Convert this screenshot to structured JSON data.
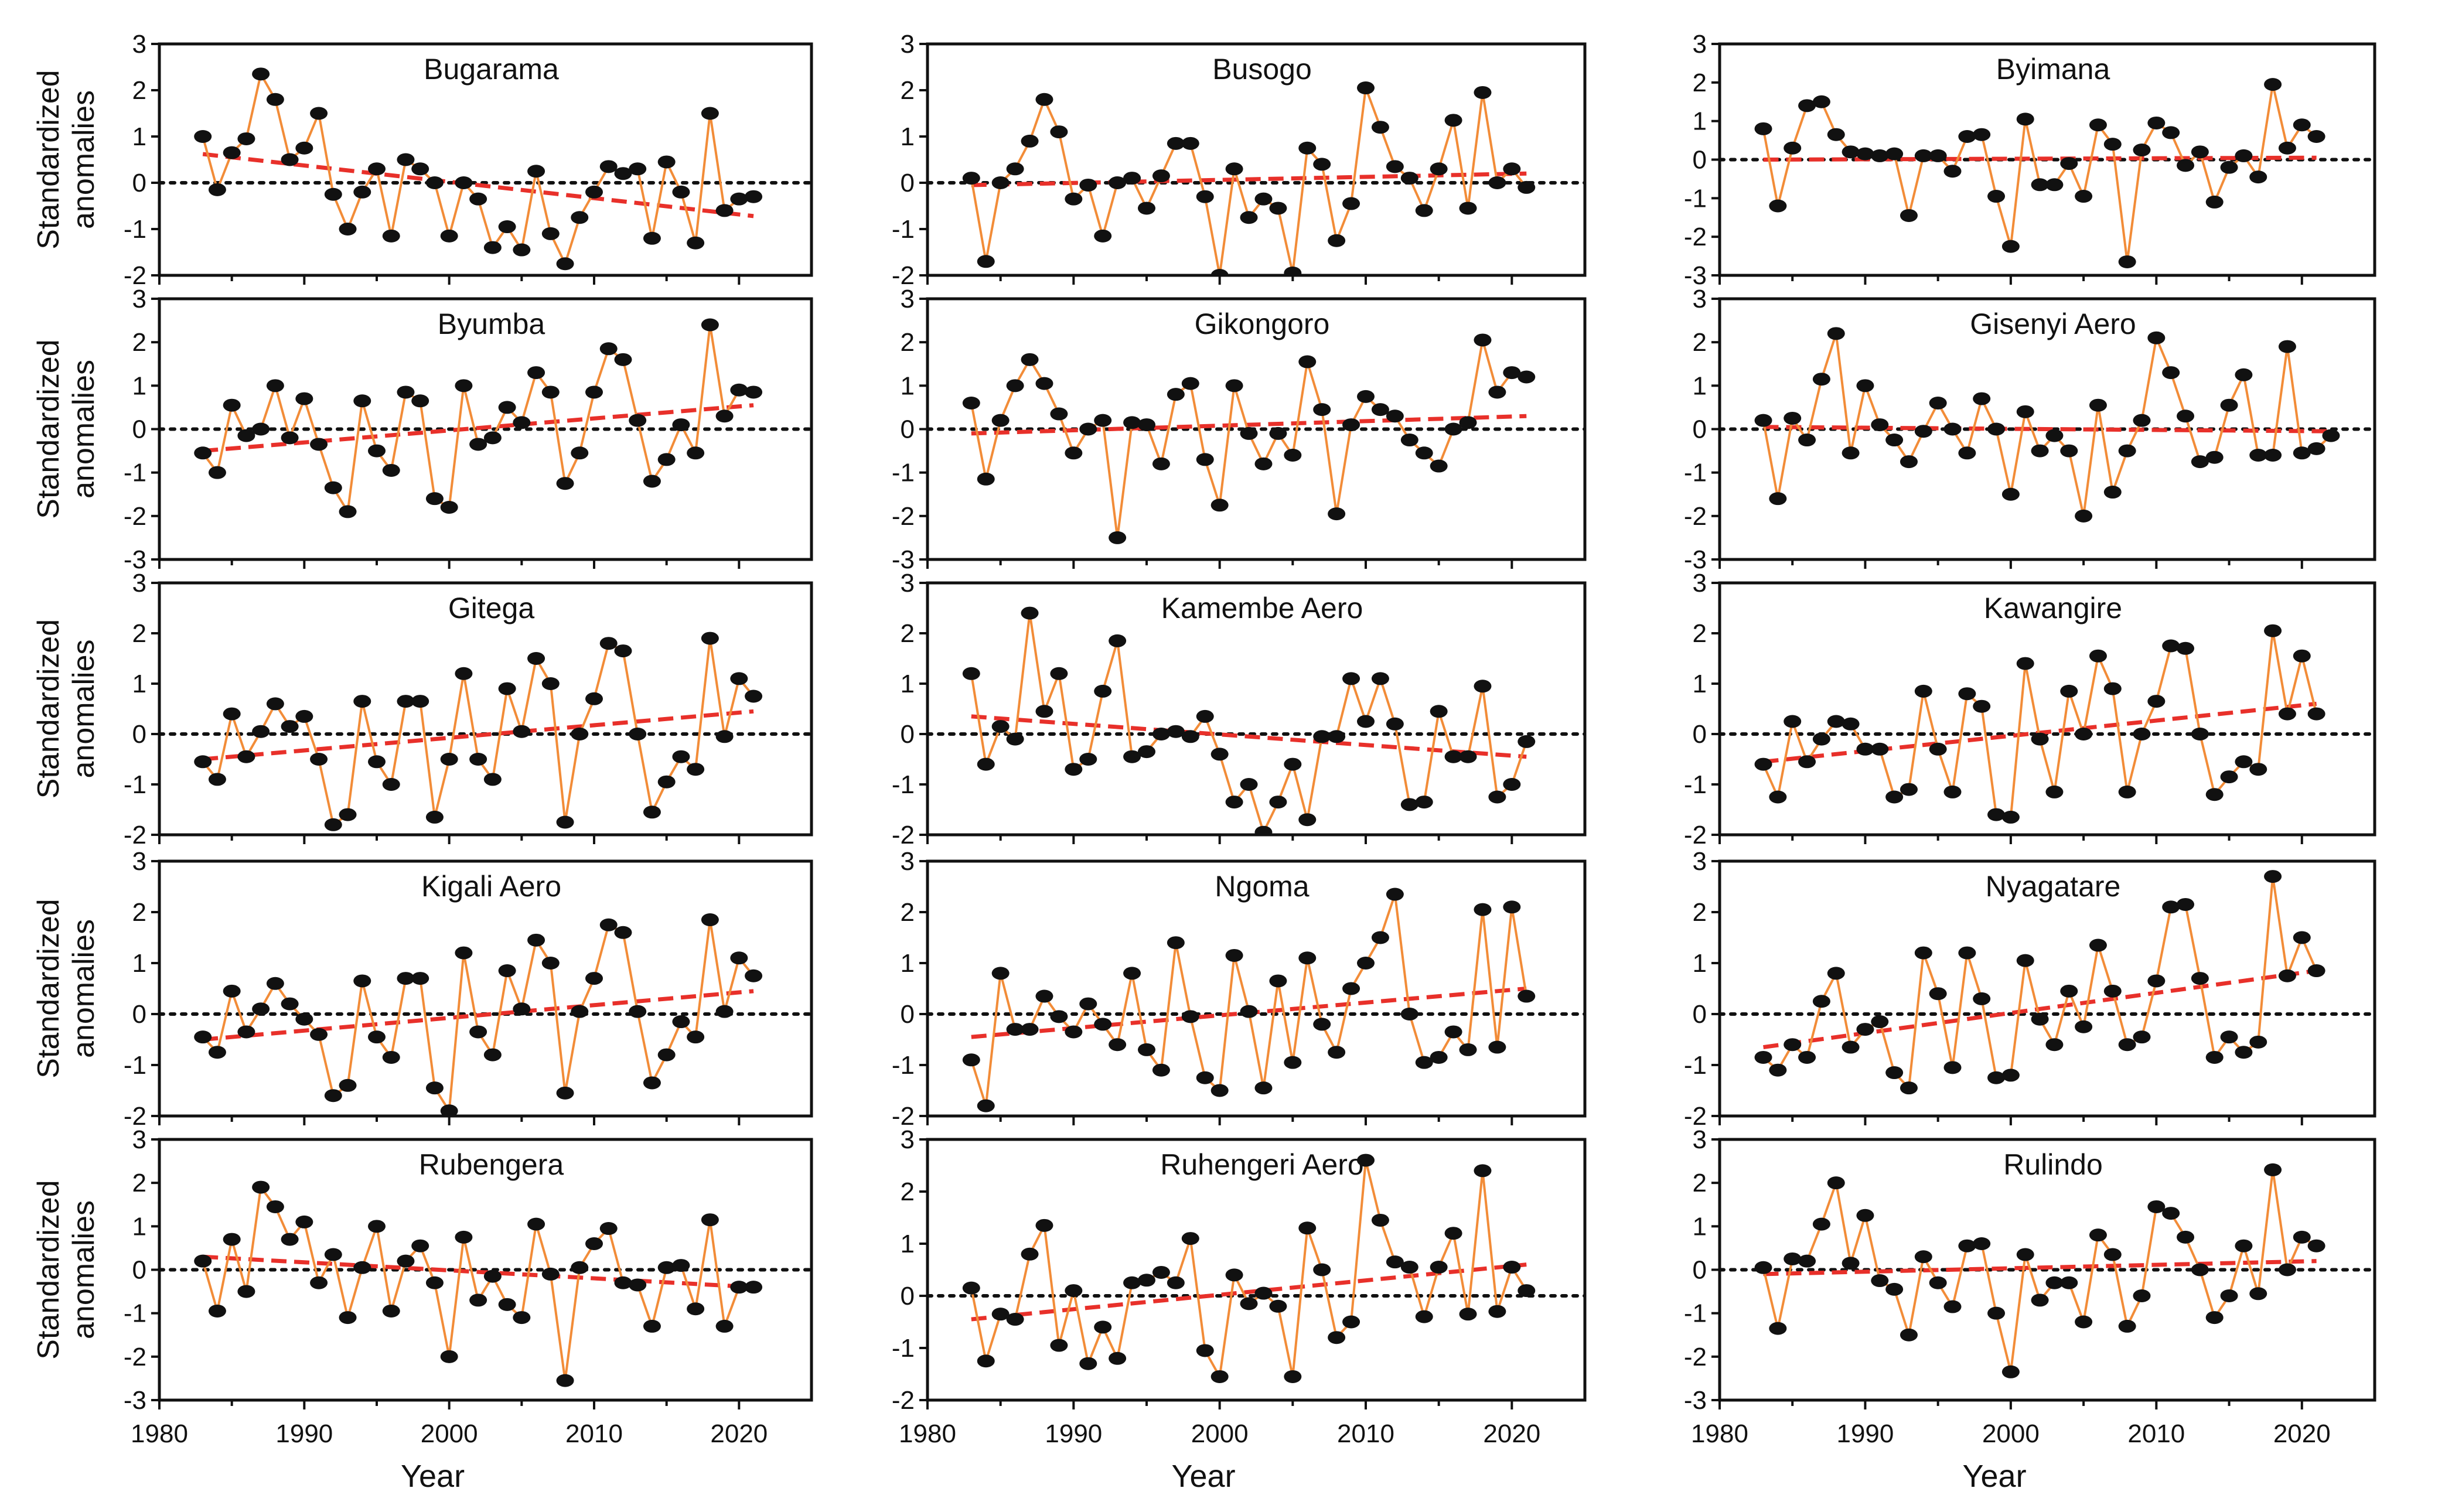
{
  "figure": {
    "xlabel": "Year",
    "ylabel_line1": "Standardized",
    "ylabel_line2": "anomalies",
    "colors": {
      "series": "#f28c38",
      "trend": "#e8302a",
      "marker": "#111111",
      "zero": "#111111",
      "frame": "#111111"
    }
  },
  "chart_data": [
    {
      "type": "line",
      "title": "Bugarama",
      "x_start": 1983,
      "ylim": [
        -2,
        3
      ],
      "xlim": [
        1980,
        2025
      ],
      "trend": [
        0.62,
        -0.72
      ],
      "values": [
        1.0,
        -0.15,
        0.65,
        0.95,
        2.35,
        1.8,
        0.5,
        0.75,
        1.5,
        -0.25,
        -1.0,
        -0.2,
        0.3,
        -1.15,
        0.5,
        0.3,
        0.0,
        -1.15,
        0.0,
        -0.35,
        -1.4,
        -0.95,
        -1.45,
        0.25,
        -1.1,
        -1.75,
        -0.75,
        -0.2,
        0.35,
        0.2,
        0.3,
        -1.2,
        0.45,
        -0.2,
        -1.3,
        1.5,
        -0.6,
        -0.35,
        -0.3
      ]
    },
    {
      "type": "line",
      "title": "Busogo",
      "x_start": 1983,
      "ylim": [
        -2,
        3
      ],
      "xlim": [
        1980,
        2025
      ],
      "trend": [
        -0.05,
        0.2
      ],
      "values": [
        0.1,
        -1.7,
        0.0,
        0.3,
        0.9,
        1.8,
        1.1,
        -0.35,
        -0.05,
        -1.15,
        0.0,
        0.1,
        -0.55,
        0.15,
        0.85,
        0.85,
        -0.3,
        -2.0,
        0.3,
        -0.75,
        -0.35,
        -0.55,
        -1.95,
        0.75,
        0.4,
        -1.25,
        -0.45,
        2.05,
        1.2,
        0.35,
        0.1,
        -0.6,
        0.3,
        1.35,
        -0.55,
        1.95,
        0.0,
        0.3,
        -0.1
      ]
    },
    {
      "type": "line",
      "title": "Byimana",
      "x_start": 1983,
      "ylim": [
        -3,
        3
      ],
      "xlim": [
        1980,
        2025
      ],
      "trend": [
        0.0,
        0.05
      ],
      "values": [
        0.8,
        -1.2,
        0.3,
        1.4,
        1.5,
        0.65,
        0.2,
        0.15,
        0.1,
        0.15,
        -1.45,
        0.1,
        0.1,
        -0.3,
        0.6,
        0.65,
        -0.95,
        -2.25,
        1.05,
        -0.65,
        -0.65,
        -0.1,
        -0.95,
        0.9,
        0.4,
        -2.65,
        0.25,
        0.95,
        0.7,
        -0.15,
        0.2,
        -1.1,
        -0.2,
        0.1,
        -0.45,
        1.95,
        0.3,
        0.9,
        0.6
      ]
    },
    {
      "type": "line",
      "title": "Byumba",
      "x_start": 1983,
      "ylim": [
        -3,
        3
      ],
      "xlim": [
        1980,
        2025
      ],
      "trend": [
        -0.5,
        0.55
      ],
      "values": [
        -0.55,
        -1.0,
        0.55,
        -0.15,
        0.0,
        1.0,
        -0.2,
        0.7,
        -0.35,
        -1.35,
        -1.9,
        0.65,
        -0.5,
        -0.95,
        0.85,
        0.65,
        -1.6,
        -1.8,
        1.0,
        -0.35,
        -0.2,
        0.5,
        0.15,
        1.3,
        0.85,
        -1.25,
        -0.55,
        0.85,
        1.85,
        1.6,
        0.2,
        -1.2,
        -0.7,
        0.1,
        -0.55,
        2.4,
        0.3,
        0.9,
        0.85
      ]
    },
    {
      "type": "line",
      "title": "Gikongoro",
      "x_start": 1983,
      "ylim": [
        -3,
        3
      ],
      "xlim": [
        1980,
        2025
      ],
      "trend": [
        -0.1,
        0.3
      ],
      "values": [
        0.6,
        -1.15,
        0.2,
        1.0,
        1.6,
        1.05,
        0.35,
        -0.55,
        0.0,
        0.2,
        -2.5,
        0.15,
        0.1,
        -0.8,
        0.8,
        1.05,
        -0.7,
        -1.75,
        1.0,
        -0.1,
        -0.8,
        -0.1,
        -0.6,
        1.55,
        0.45,
        -1.95,
        0.1,
        0.75,
        0.45,
        0.3,
        -0.25,
        -0.55,
        -0.85,
        0.0,
        0.15,
        2.05,
        0.85,
        1.3,
        1.2
      ]
    },
    {
      "type": "line",
      "title": "Gisenyi Aero",
      "x_start": 1983,
      "ylim": [
        -3,
        3
      ],
      "xlim": [
        1980,
        2025
      ],
      "trend": [
        0.05,
        -0.05
      ],
      "values": [
        0.2,
        -1.6,
        0.25,
        -0.25,
        1.15,
        2.2,
        -0.55,
        1.0,
        0.1,
        -0.25,
        -0.75,
        -0.05,
        0.6,
        0.0,
        -0.55,
        0.7,
        0.0,
        -1.5,
        0.4,
        -0.5,
        -0.15,
        -0.5,
        -2.0,
        0.55,
        -1.45,
        -0.5,
        0.2,
        2.1,
        1.3,
        0.3,
        -0.75,
        -0.65,
        0.55,
        1.25,
        -0.6,
        -0.6,
        1.9,
        -0.55,
        -0.45,
        -0.15
      ]
    },
    {
      "type": "line",
      "title": "Gitega",
      "x_start": 1983,
      "ylim": [
        -2,
        3
      ],
      "xlim": [
        1980,
        2025
      ],
      "trend": [
        -0.5,
        0.45
      ],
      "values": [
        -0.55,
        -0.9,
        0.4,
        -0.45,
        0.05,
        0.6,
        0.15,
        0.35,
        -0.5,
        -1.8,
        -1.6,
        0.65,
        -0.55,
        -1.0,
        0.65,
        0.65,
        -1.65,
        -0.5,
        1.2,
        -0.5,
        -0.9,
        0.9,
        0.05,
        1.5,
        1.0,
        -1.75,
        0.0,
        0.7,
        1.8,
        1.65,
        0.0,
        -1.55,
        -0.95,
        -0.45,
        -0.7,
        1.9,
        -0.05,
        1.1,
        0.75
      ]
    },
    {
      "type": "line",
      "title": "Kamembe Aero",
      "x_start": 1983,
      "ylim": [
        -2,
        3
      ],
      "xlim": [
        1980,
        2025
      ],
      "trend": [
        0.35,
        -0.45
      ],
      "values": [
        1.2,
        -0.6,
        0.15,
        -0.1,
        2.4,
        0.45,
        1.2,
        -0.7,
        -0.5,
        0.85,
        1.85,
        -0.45,
        -0.35,
        0.0,
        0.05,
        -0.05,
        0.35,
        -0.4,
        -1.35,
        -1.0,
        -1.95,
        -1.35,
        -0.6,
        -1.7,
        -0.05,
        -0.05,
        1.1,
        0.25,
        1.1,
        0.2,
        -1.4,
        -1.35,
        0.45,
        -0.45,
        -0.45,
        0.95,
        -1.25,
        -1.0,
        -0.15
      ]
    },
    {
      "type": "line",
      "title": "Kawangire",
      "x_start": 1983,
      "ylim": [
        -2,
        3
      ],
      "xlim": [
        1980,
        2025
      ],
      "trend": [
        -0.55,
        0.6
      ],
      "values": [
        -0.6,
        -1.25,
        0.25,
        -0.55,
        -0.1,
        0.25,
        0.2,
        -0.3,
        -0.3,
        -1.25,
        -1.1,
        0.85,
        -0.3,
        -1.15,
        0.8,
        0.55,
        -1.6,
        -1.65,
        1.4,
        -0.1,
        -1.15,
        0.85,
        0.0,
        1.55,
        0.9,
        -1.15,
        0.0,
        0.65,
        1.75,
        1.7,
        0.0,
        -1.2,
        -0.85,
        -0.55,
        -0.7,
        2.05,
        0.4,
        1.55,
        0.4
      ]
    },
    {
      "type": "line",
      "title": "Kigali Aero",
      "x_start": 1983,
      "ylim": [
        -2,
        3
      ],
      "xlim": [
        1980,
        2025
      ],
      "trend": [
        -0.5,
        0.45
      ],
      "values": [
        -0.45,
        -0.75,
        0.45,
        -0.35,
        0.1,
        0.6,
        0.2,
        -0.1,
        -0.4,
        -1.6,
        -1.4,
        0.65,
        -0.45,
        -0.85,
        0.7,
        0.7,
        -1.45,
        -1.9,
        1.2,
        -0.35,
        -0.8,
        0.85,
        0.1,
        1.45,
        1.0,
        -1.55,
        0.05,
        0.7,
        1.75,
        1.6,
        0.05,
        -1.35,
        -0.8,
        -0.15,
        -0.45,
        1.85,
        0.05,
        1.1,
        0.75
      ]
    },
    {
      "type": "line",
      "title": "Ngoma",
      "x_start": 1983,
      "ylim": [
        -2,
        3
      ],
      "xlim": [
        1980,
        2025
      ],
      "trend": [
        -0.45,
        0.5
      ],
      "values": [
        -0.9,
        -1.8,
        0.8,
        -0.3,
        -0.3,
        0.35,
        -0.05,
        -0.35,
        0.2,
        -0.2,
        -0.6,
        0.8,
        -0.7,
        -1.1,
        1.4,
        -0.05,
        -1.25,
        -1.5,
        1.15,
        0.05,
        -1.45,
        0.65,
        -0.95,
        1.1,
        -0.2,
        -0.75,
        0.5,
        1.0,
        1.5,
        2.35,
        0.0,
        -0.95,
        -0.85,
        -0.35,
        -0.7,
        2.05,
        -0.65,
        2.1,
        0.35
      ]
    },
    {
      "type": "line",
      "title": "Nyagatare",
      "x_start": 1983,
      "ylim": [
        -2,
        3
      ],
      "xlim": [
        1980,
        2025
      ],
      "trend": [
        -0.65,
        0.85
      ],
      "values": [
        -0.85,
        -1.1,
        -0.6,
        -0.85,
        0.25,
        0.8,
        -0.65,
        -0.3,
        -0.15,
        -1.15,
        -1.45,
        1.2,
        0.4,
        -1.05,
        1.2,
        0.3,
        -1.25,
        -1.2,
        1.05,
        -0.1,
        -0.6,
        0.45,
        -0.25,
        1.35,
        0.45,
        -0.6,
        -0.45,
        0.65,
        2.1,
        2.15,
        0.7,
        -0.85,
        -0.45,
        -0.75,
        -0.55,
        2.7,
        0.75,
        1.5,
        0.85
      ]
    },
    {
      "type": "line",
      "title": "Rubengera",
      "x_start": 1983,
      "ylim": [
        -3,
        3
      ],
      "xlim": [
        1980,
        2025
      ],
      "trend": [
        0.3,
        -0.4
      ],
      "values": [
        0.2,
        -0.95,
        0.7,
        -0.5,
        1.9,
        1.45,
        0.7,
        1.1,
        -0.3,
        0.35,
        -1.1,
        0.05,
        1.0,
        -0.95,
        0.2,
        0.55,
        -0.3,
        -2.0,
        0.75,
        -0.7,
        -0.15,
        -0.8,
        -1.1,
        1.05,
        -0.1,
        -2.55,
        0.05,
        0.6,
        0.95,
        -0.3,
        -0.35,
        -1.3,
        0.05,
        0.1,
        -0.9,
        1.15,
        -1.3,
        -0.4,
        -0.4
      ]
    },
    {
      "type": "line",
      "title": "Ruhengeri Aero",
      "x_start": 1983,
      "ylim": [
        -2,
        3
      ],
      "xlim": [
        1980,
        2025
      ],
      "trend": [
        -0.45,
        0.6
      ],
      "values": [
        0.15,
        -1.25,
        -0.35,
        -0.45,
        0.8,
        1.35,
        -0.95,
        0.1,
        -1.3,
        -0.6,
        -1.2,
        0.25,
        0.3,
        0.45,
        0.25,
        1.1,
        -1.05,
        -1.55,
        0.4,
        -0.15,
        0.05,
        -0.2,
        -1.55,
        1.3,
        0.5,
        -0.8,
        -0.5,
        2.6,
        1.45,
        0.65,
        0.55,
        -0.4,
        0.55,
        1.2,
        -0.35,
        2.4,
        -0.3,
        0.55,
        0.1
      ]
    },
    {
      "type": "line",
      "title": "Rulindo",
      "x_start": 1983,
      "ylim": [
        -3,
        3
      ],
      "xlim": [
        1980,
        2025
      ],
      "trend": [
        -0.1,
        0.2
      ],
      "values": [
        0.05,
        -1.35,
        0.25,
        0.2,
        1.05,
        2.0,
        0.15,
        1.25,
        -0.25,
        -0.45,
        -1.5,
        0.3,
        -0.3,
        -0.85,
        0.55,
        0.6,
        -1.0,
        -2.35,
        0.35,
        -0.7,
        -0.3,
        -0.3,
        -1.2,
        0.8,
        0.35,
        -1.3,
        -0.6,
        1.45,
        1.3,
        0.75,
        0.0,
        -1.1,
        -0.6,
        0.55,
        -0.55,
        2.3,
        0.0,
        0.75,
        0.55
      ]
    }
  ]
}
